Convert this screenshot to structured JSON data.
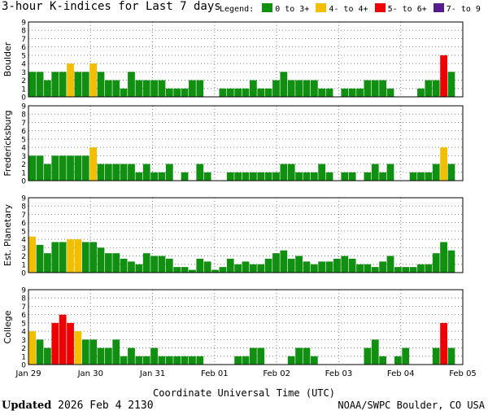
{
  "title": "3-hour K-indices for Last 7 days",
  "legend": {
    "label": "Legend:",
    "items": [
      {
        "name": "0 to 3+",
        "color": "#118f11"
      },
      {
        "name": "4- to 4+",
        "color": "#f2bf00"
      },
      {
        "name": "5- to 6+",
        "color": "#ee0000"
      },
      {
        "name": "7- to 9",
        "color": "#551a8b"
      }
    ]
  },
  "footer": {
    "updated_label": "Updated",
    "updated_value": "2026 Feb  4 2130",
    "source": "NOAA/SWPC Boulder, CO USA"
  },
  "chart_data": {
    "type": "bar",
    "title": "3-hour K-indices for Last 7 days",
    "xlabel": "Coordinate Universal Time (UTC)",
    "x_tick_labels": [
      "Jan 29",
      "Jan 30",
      "Jan 31",
      "Feb 01",
      "Feb 02",
      "Feb 03",
      "Feb 04",
      "Feb 05"
    ],
    "ylim": [
      0,
      9
    ],
    "y_ticks": [
      0,
      1,
      2,
      3,
      4,
      5,
      6,
      7,
      8,
      9
    ],
    "grid": true,
    "color_thresholds": {
      "green_below": 4,
      "yellow_below": 5,
      "red_below": 7
    },
    "series": [
      {
        "name": "Boulder",
        "values": [
          3,
          3,
          2,
          3,
          3,
          4,
          3,
          3,
          4,
          3,
          2,
          2,
          1,
          3,
          2,
          2,
          2,
          2,
          1,
          1,
          1,
          2,
          2,
          0,
          0,
          1,
          1,
          1,
          1,
          2,
          1,
          1,
          2,
          3,
          2,
          2,
          2,
          2,
          1,
          1,
          0,
          1,
          1,
          1,
          2,
          2,
          2,
          1,
          0,
          0,
          0,
          1,
          2,
          2,
          5,
          3,
          0
        ]
      },
      {
        "name": "Fredericksburg",
        "values": [
          3,
          3,
          2,
          3,
          3,
          3,
          3,
          3,
          4,
          2,
          2,
          2,
          2,
          2,
          1,
          2,
          1,
          1,
          2,
          0,
          1,
          0,
          2,
          1,
          0,
          0,
          1,
          1,
          1,
          1,
          1,
          1,
          1,
          2,
          2,
          1,
          1,
          1,
          2,
          1,
          0,
          1,
          1,
          0,
          1,
          2,
          1,
          2,
          0,
          0,
          1,
          1,
          1,
          2,
          4,
          2,
          0
        ]
      },
      {
        "name": "Est. Planetary",
        "values": [
          4.33,
          3.33,
          2.33,
          3.67,
          3.67,
          4,
          4,
          3.67,
          3.67,
          3,
          2.33,
          2.33,
          1.67,
          1.33,
          1,
          2.33,
          2,
          2,
          1.67,
          0.67,
          0.67,
          0.33,
          1.67,
          1.33,
          0.33,
          0.67,
          1.67,
          1,
          1.33,
          1,
          1,
          1.67,
          2.33,
          2.67,
          1.67,
          2,
          1.33,
          1,
          1.33,
          1.33,
          1.67,
          2,
          1.67,
          1,
          1,
          0.67,
          1.33,
          2,
          0.67,
          0.67,
          0.67,
          1,
          1,
          2.33,
          3.67,
          2.67,
          0
        ]
      },
      {
        "name": "College",
        "values": [
          4,
          3,
          2,
          5,
          6,
          5,
          4,
          3,
          3,
          2,
          2,
          3,
          1,
          2,
          1,
          1,
          2,
          1,
          1,
          1,
          1,
          1,
          1,
          0,
          0,
          0,
          0,
          1,
          1,
          2,
          2,
          0,
          0,
          0,
          1,
          2,
          2,
          1,
          0,
          0,
          0,
          0,
          0,
          0,
          2,
          3,
          1,
          0,
          1,
          2,
          0,
          0,
          0,
          2,
          5,
          2,
          0
        ]
      }
    ]
  }
}
